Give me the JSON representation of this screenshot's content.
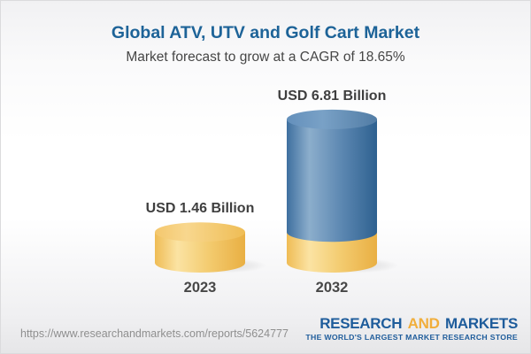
{
  "header": {
    "title": "Global ATV, UTV and Golf Cart Market",
    "subtitle": "Market forecast to grow at a CAGR of 18.65%"
  },
  "chart_data": {
    "type": "bar",
    "variant": "3d-cylinder",
    "title": "Global ATV, UTV and Golf Cart Market",
    "subtitle": "Market forecast to grow at a CAGR of 18.65%",
    "unit": "USD Billion",
    "cagr_percent": 18.65,
    "categories": [
      "2023",
      "2032"
    ],
    "values": [
      1.46,
      6.81
    ],
    "value_labels": [
      "USD 1.46 Billion",
      "USD 6.81 Billion"
    ],
    "base_segment_value": 1.46,
    "bar_colors": [
      "#F2C366",
      "#5C88B4"
    ],
    "legend": "none",
    "grid": false,
    "axes": "none"
  },
  "footer": {
    "url": "https://www.researchandmarkets.com/reports/5624777",
    "logo": {
      "word1": "RESEARCH",
      "word2": "AND",
      "word3": "MARKETS",
      "tagline": "THE WORLD'S LARGEST MARKET RESEARCH STORE"
    }
  },
  "colors": {
    "title_blue": "#1D6398",
    "subtitle_gray": "#464646",
    "label_dark": "#3F3F3F",
    "url_gray": "#8F8F8F",
    "logo_blue": "#1E5C9B",
    "logo_gold": "#F1AE3B",
    "bar_gold": "#F2C366",
    "bar_blue": "#5C88B4"
  }
}
